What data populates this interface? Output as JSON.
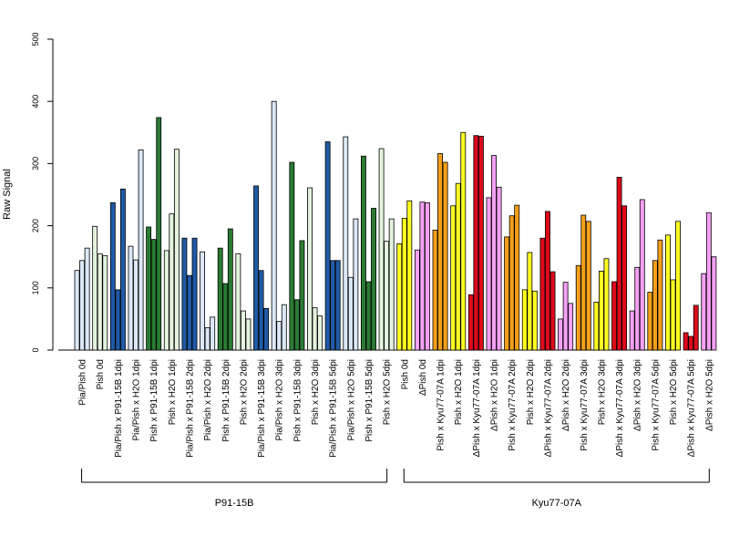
{
  "chart_data": {
    "type": "bar",
    "ylabel": "Raw Signal",
    "ylim": [
      0,
      500
    ],
    "yticks": [
      "0",
      "100",
      "200",
      "300",
      "400",
      "500"
    ],
    "colors": {
      "lightblue": "#dce8f7",
      "darkblue": "#1f5aa6",
      "lightgreen": "#e4f3de",
      "darkgreen": "#2a7a33",
      "yellow": "#ffff22",
      "pink": "#f5a0f5",
      "orange": "#f5a01a",
      "red": "#dd0a1a"
    },
    "categories": [
      {
        "label": "Pia/Pish 0d",
        "color": "lightblue",
        "values": [
          128,
          144,
          164
        ]
      },
      {
        "label": "Pish 0d",
        "color": "lightgreen",
        "values": [
          199,
          155,
          152
        ]
      },
      {
        "label": "Pia/Pish x P91-15B 1dpi",
        "color": "darkblue",
        "values": [
          237,
          97,
          259
        ]
      },
      {
        "label": "Pia/Pish x H2O 1dpi",
        "color": "lightblue",
        "values": [
          167,
          145,
          322
        ]
      },
      {
        "label": "Pish x P91-15B 1dpi",
        "color": "darkgreen",
        "values": [
          198,
          178,
          374
        ]
      },
      {
        "label": "Pish x H2O 1dpi",
        "color": "lightgreen",
        "values": [
          160,
          219,
          323
        ]
      },
      {
        "label": "Pia/Pish x P91-15B 2dpi",
        "color": "darkblue",
        "values": [
          180,
          120,
          180
        ]
      },
      {
        "label": "Pia/Pish x H2O 2dpi",
        "color": "lightblue",
        "values": [
          158,
          36,
          53
        ]
      },
      {
        "label": "Pish x P91-15B 2dpi",
        "color": "darkgreen",
        "values": [
          164,
          107,
          195
        ]
      },
      {
        "label": "Pish x H2O 2dpi",
        "color": "lightgreen",
        "values": [
          155,
          63,
          50
        ]
      },
      {
        "label": "Pia/Pish x P91-15B 3dpi",
        "color": "darkblue",
        "values": [
          264,
          128,
          67
        ]
      },
      {
        "label": "Pia/Pish x H2O 3dpi",
        "color": "lightblue",
        "values": [
          400,
          46,
          73
        ]
      },
      {
        "label": "Pish x P91-15B 3dpi",
        "color": "darkgreen",
        "values": [
          302,
          81,
          176
        ]
      },
      {
        "label": "Pish x H2O 3dpi",
        "color": "lightgreen",
        "values": [
          261,
          68,
          55
        ]
      },
      {
        "label": "Pia/Pish x P91-15B 5dpi",
        "color": "darkblue",
        "values": [
          335,
          144,
          144
        ]
      },
      {
        "label": "Pia/Pish x H2O 5dpi",
        "color": "lightblue",
        "values": [
          343,
          117,
          211
        ]
      },
      {
        "label": "Pish x P91-15B 5dpi",
        "color": "darkgreen",
        "values": [
          312,
          110,
          228
        ]
      },
      {
        "label": "Pish x H2O 5dpi",
        "color": "lightgreen",
        "values": [
          324,
          175,
          211
        ]
      },
      {
        "label": "Pish 0d",
        "color": "yellow",
        "values": [
          171,
          212,
          240
        ]
      },
      {
        "label": "ΔPish 0d",
        "color": "pink",
        "values": [
          161,
          238,
          237
        ]
      },
      {
        "label": "Pish x Kyu77-07A 1dpi",
        "color": "orange",
        "values": [
          193,
          316,
          302
        ]
      },
      {
        "label": "Pish x H2O 1dpi",
        "color": "yellow",
        "values": [
          232,
          268,
          350
        ]
      },
      {
        "label": "ΔPish x Kyu77-07A 1dpi",
        "color": "red",
        "values": [
          89,
          345,
          344
        ]
      },
      {
        "label": "ΔPish x H2O 1dpi",
        "color": "pink",
        "values": [
          245,
          313,
          262
        ]
      },
      {
        "label": "Pish x Kyu77-07A 2dpi",
        "color": "orange",
        "values": [
          182,
          216,
          233
        ]
      },
      {
        "label": "Pish x H2O 2dpi",
        "color": "yellow",
        "values": [
          97,
          157,
          95
        ]
      },
      {
        "label": "ΔPish x Kyu77-07A 2dpi",
        "color": "red",
        "values": [
          180,
          223,
          126
        ]
      },
      {
        "label": "ΔPish x H2O 2dpi",
        "color": "pink",
        "values": [
          50,
          109,
          75
        ]
      },
      {
        "label": "Pish x Kyu77-07A 3dpi",
        "color": "orange",
        "values": [
          136,
          217,
          207
        ]
      },
      {
        "label": "Pish x H2O 3dpi",
        "color": "yellow",
        "values": [
          77,
          127,
          147
        ]
      },
      {
        "label": "ΔPish x Kyu77-07A 3dpi",
        "color": "red",
        "values": [
          110,
          278,
          232
        ]
      },
      {
        "label": "ΔPish x H2O 3dpi",
        "color": "pink",
        "values": [
          63,
          133,
          242
        ]
      },
      {
        "label": "Pish x Kyu77-07A 5dpi",
        "color": "orange",
        "values": [
          93,
          144,
          177
        ]
      },
      {
        "label": "Pish x H2O 5dpi",
        "color": "yellow",
        "values": [
          185,
          113,
          207
        ]
      },
      {
        "label": "ΔPish x Kyu77-07A 5dpi",
        "color": "red",
        "values": [
          28,
          22,
          72
        ]
      },
      {
        "label": "ΔPish x H2O 5dpi",
        "color": "pink",
        "values": [
          123,
          221,
          150
        ]
      }
    ],
    "groups": [
      {
        "label": "P91-15B",
        "start": 0,
        "end": 17
      },
      {
        "label": "Kyu77-07A",
        "start": 18,
        "end": 35
      }
    ]
  }
}
